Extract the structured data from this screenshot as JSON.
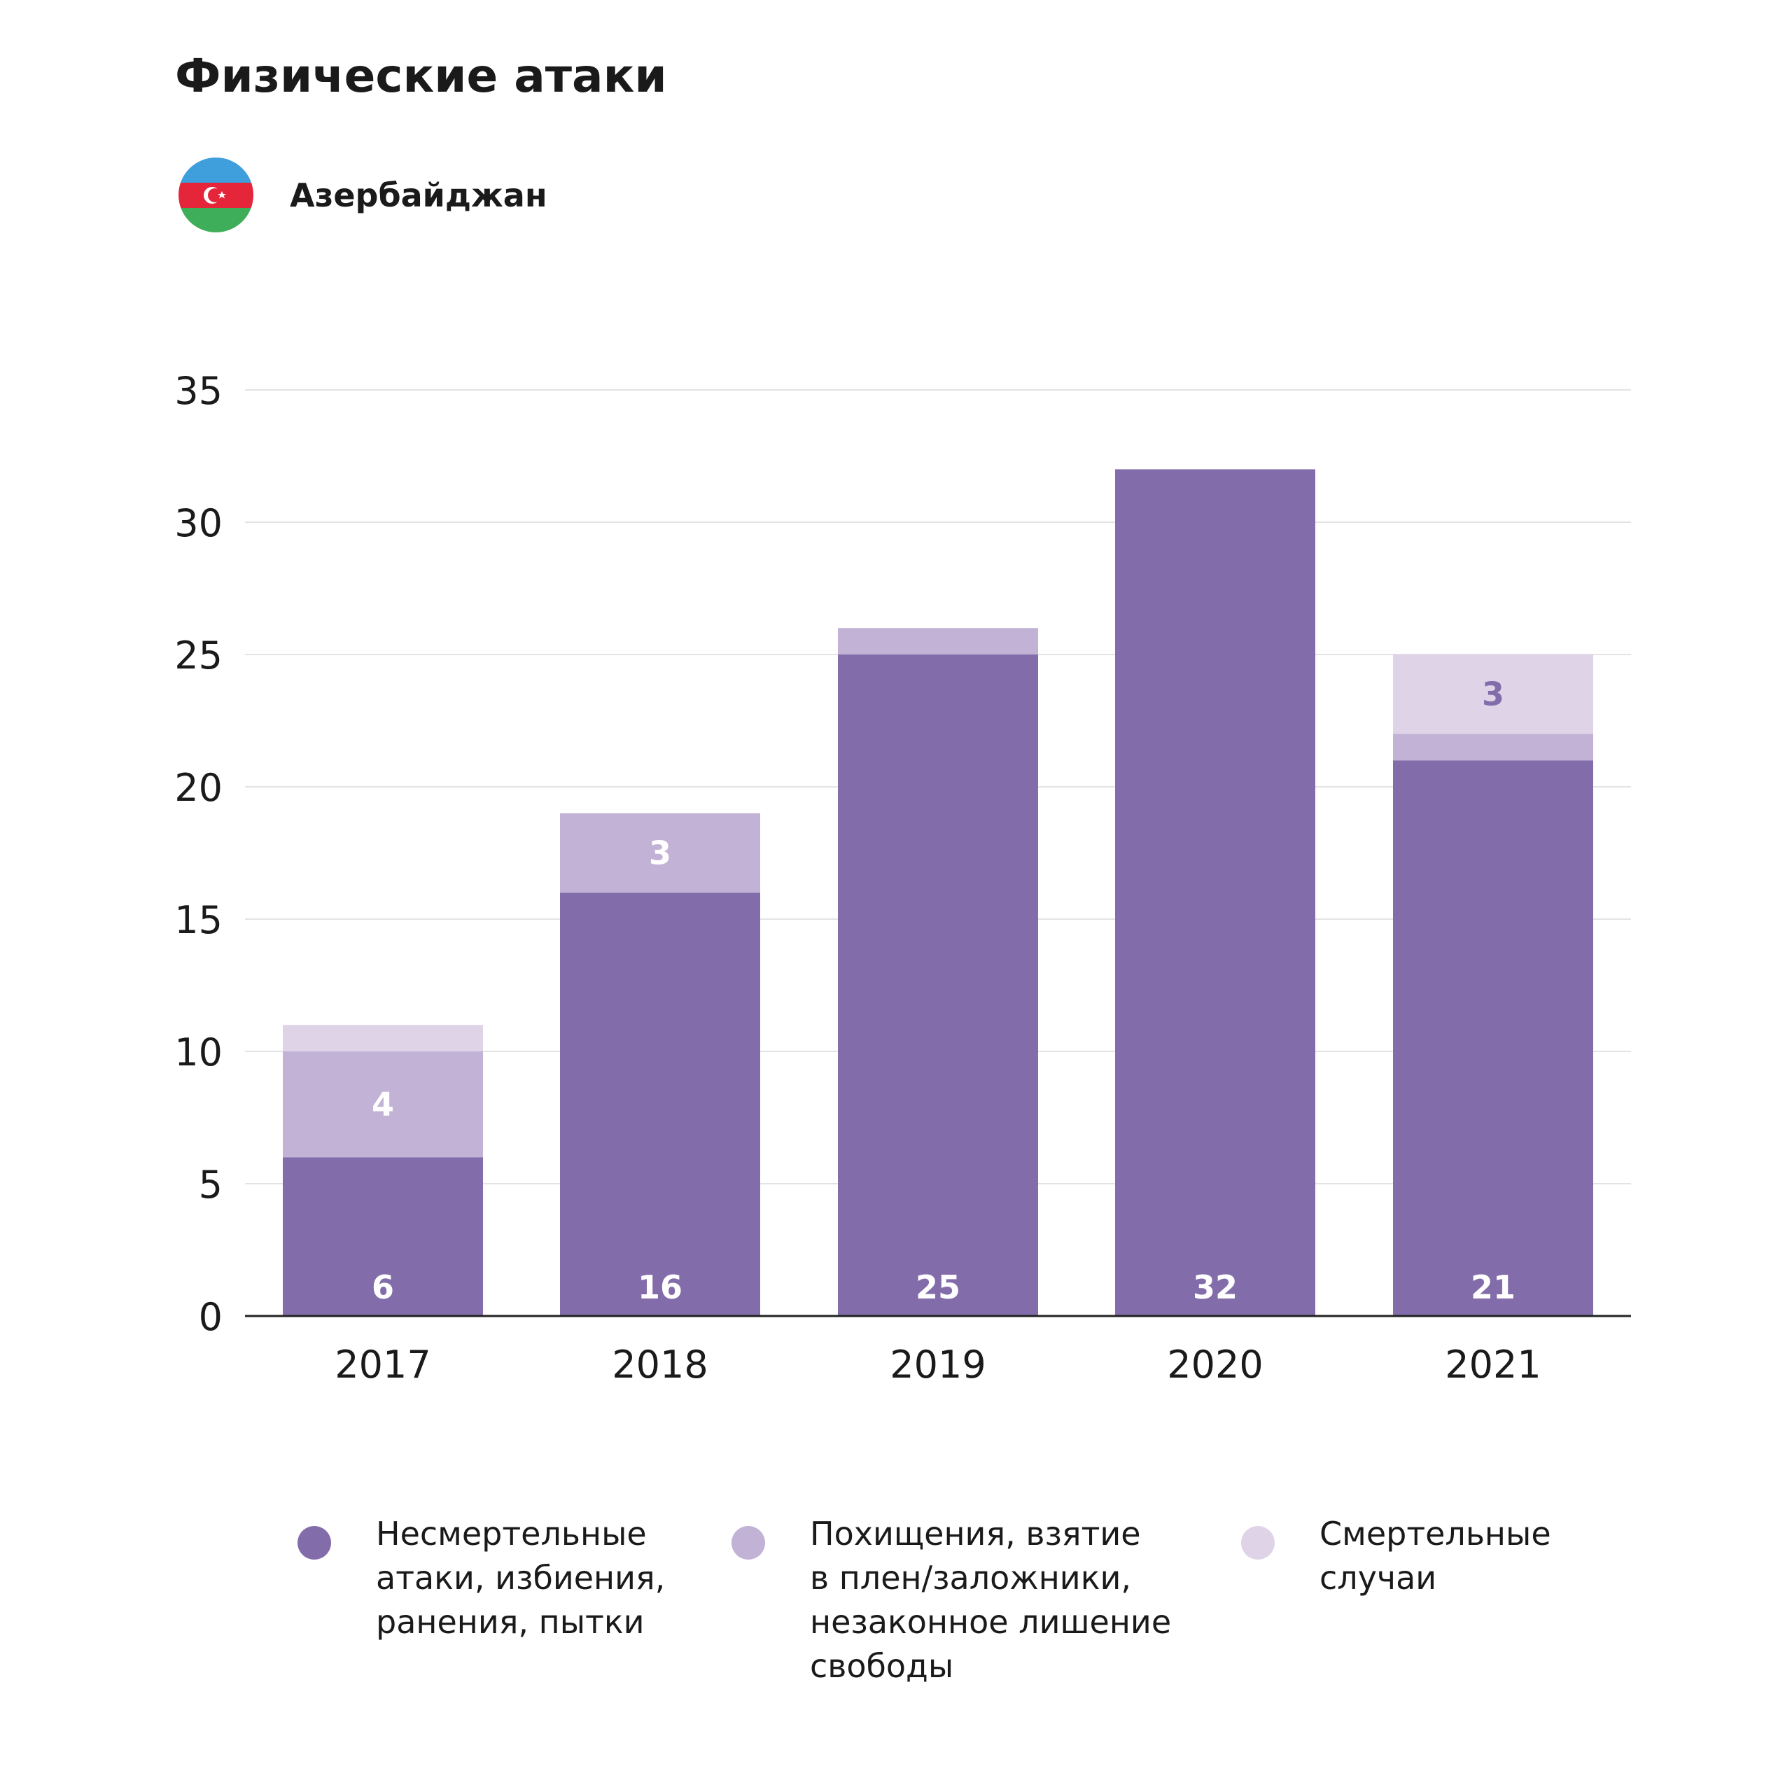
{
  "title": "Физические атаки",
  "country": {
    "name": "Азербайджан",
    "flag_icon": "azerbaijan-flag-icon"
  },
  "colors": {
    "nonlethal": "#826daa",
    "abduction": "#c1b2d6",
    "fatal": "#dfd3e8",
    "grid": "#e3e3e3",
    "axis": "#222222"
  },
  "chart_data": {
    "type": "bar",
    "stacked": true,
    "categories": [
      "2017",
      "2018",
      "2019",
      "2020",
      "2021"
    ],
    "series": [
      {
        "name": "Несмертельные атаки, избиения, ранения, пытки",
        "values": [
          6,
          16,
          25,
          32,
          21
        ]
      },
      {
        "name": "Похищения, взятие в плен/заложники, незаконное лишение свободы",
        "values": [
          4,
          3,
          1,
          0,
          1
        ]
      },
      {
        "name": "Смертельные случаи",
        "values": [
          1,
          0,
          0,
          0,
          3
        ]
      }
    ],
    "data_labels": [
      {
        "category": "2017",
        "series": 0,
        "text": "6"
      },
      {
        "category": "2018",
        "series": 0,
        "text": "16"
      },
      {
        "category": "2019",
        "series": 0,
        "text": "25"
      },
      {
        "category": "2020",
        "series": 0,
        "text": "32"
      },
      {
        "category": "2021",
        "series": 0,
        "text": "21"
      },
      {
        "category": "2017",
        "series": 1,
        "text": "4"
      },
      {
        "category": "2018",
        "series": 1,
        "text": "3"
      },
      {
        "category": "2021",
        "series": 2,
        "text": "3"
      }
    ],
    "yticks": [
      "0",
      "5",
      "10",
      "15",
      "20",
      "25",
      "30",
      "35"
    ],
    "ylim": [
      0,
      35
    ],
    "grid": true,
    "legend_position": "bottom"
  },
  "legend": [
    {
      "label": "Несмертельные\nатаки, избиения,\nранения, пытки"
    },
    {
      "label": "Похищения, взятие\nв плен/заложники,\nнезаконное лишение\nсвободы"
    },
    {
      "label": "Смертельные\nслучаи"
    }
  ]
}
